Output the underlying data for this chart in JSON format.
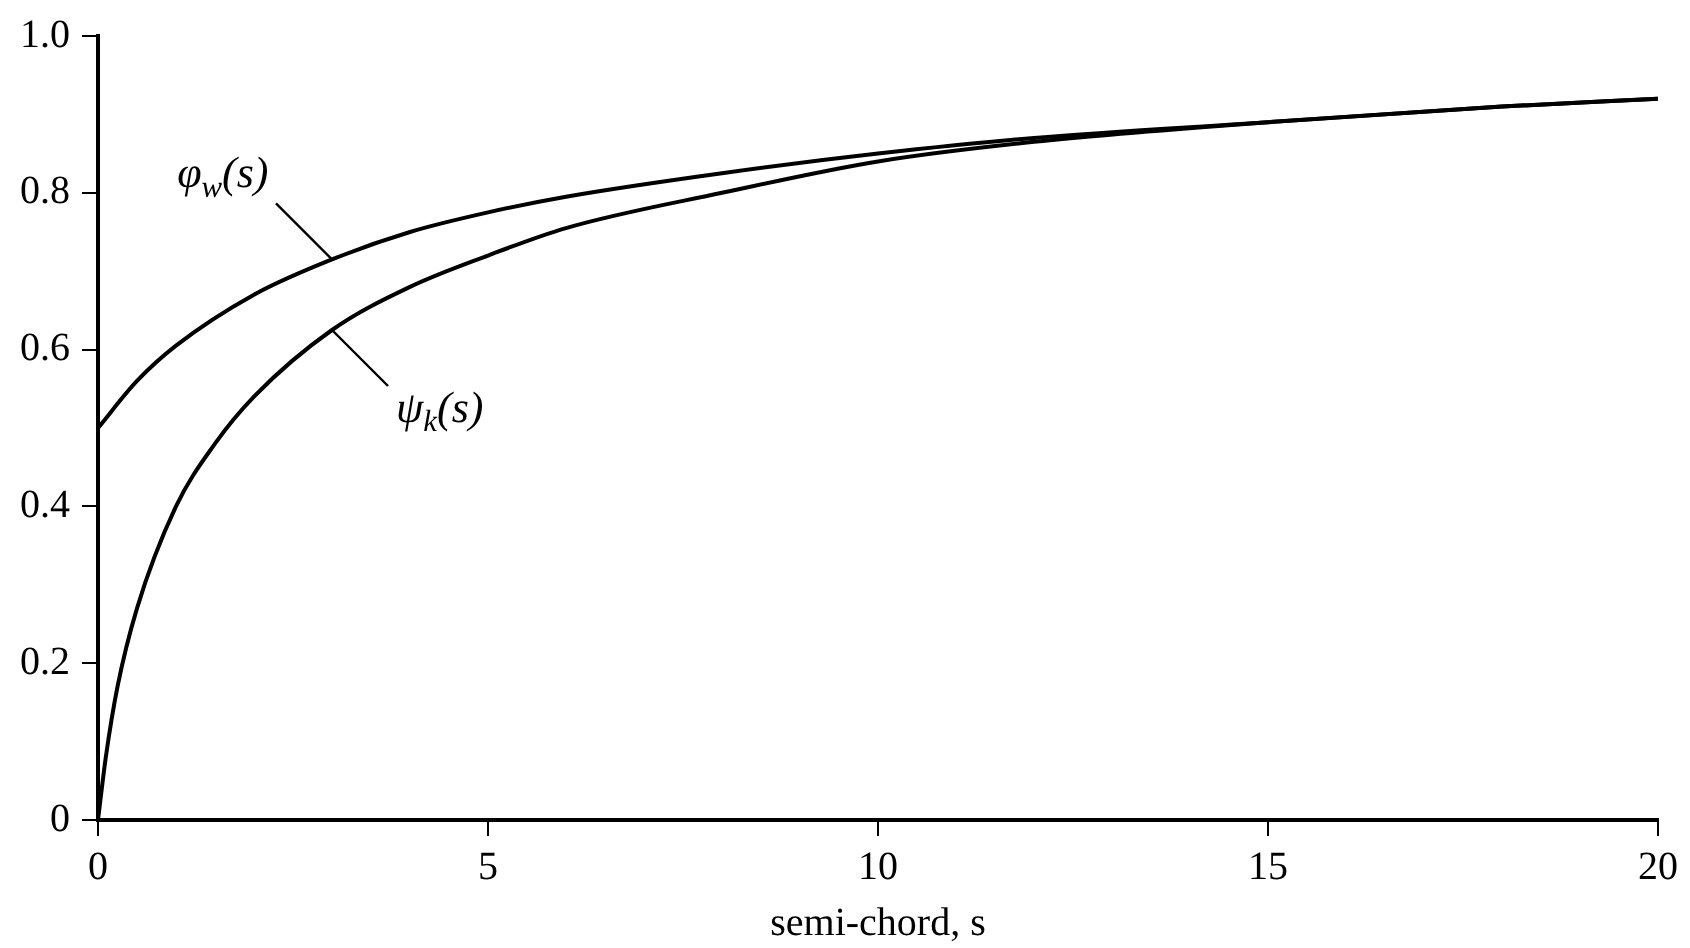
{
  "chart_data": {
    "type": "line",
    "xlabel": "semi-chord, s",
    "xlim": [
      0,
      20
    ],
    "xticks": [
      0,
      5,
      10,
      15,
      20
    ],
    "ylim": [
      0,
      1
    ],
    "yticks": [
      0,
      0.2,
      0.4,
      0.6,
      0.8,
      {
        "value": 1,
        "label": "1.0"
      }
    ],
    "grid": false,
    "legend": "top left",
    "marker": "none",
    "line_style": "solid",
    "series": [
      {
        "name": "φ$_{w}$(s)",
        "color": "#000000",
        "x": [
          0,
          0.5,
          1,
          2,
          3,
          4,
          5,
          6,
          8,
          10,
          12,
          15,
          18,
          20
        ],
        "values": [
          0.5,
          0.56,
          0.605,
          0.67,
          0.715,
          0.75,
          0.775,
          0.795,
          0.825,
          0.85,
          0.87,
          0.89,
          0.91,
          0.92
        ]
      },
      {
        "name": "ψ$_{k}$(s)",
        "color": "#000000",
        "x": [
          0,
          0.1,
          0.25,
          0.5,
          1,
          1.5,
          2,
          3,
          4,
          5,
          6,
          8,
          10,
          12,
          15,
          18,
          20
        ],
        "values": [
          0,
          0.08,
          0.17,
          0.27,
          0.4,
          0.48,
          0.54,
          0.625,
          0.68,
          0.72,
          0.755,
          0.8,
          0.84,
          0.865,
          0.89,
          0.91,
          0.92
        ]
      }
    ]
  }
}
